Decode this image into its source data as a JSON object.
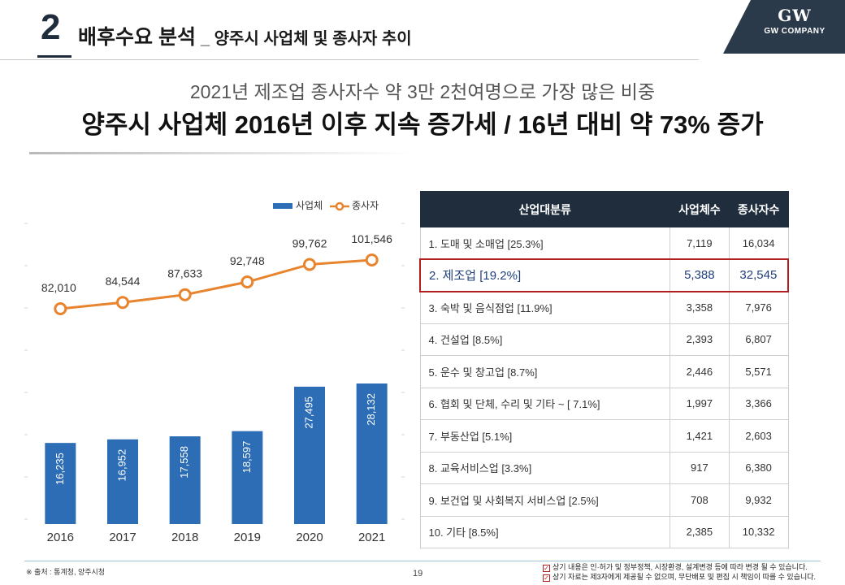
{
  "header": {
    "section_number": "2",
    "title": "배후수요 분석",
    "subtitle": "_ 양주시 사업체 및 종사자 추이",
    "logo_mark": "GW",
    "logo_name": "GW COMPANY"
  },
  "headline": {
    "line1": "2021년 제조업 종사자수 약 3만 2천여명으로 가장 많은 비중",
    "line2": "양주시 사업체 2016년 이후 지속 증가세 / 16년 대비 약 73% 증가"
  },
  "chart_data": {
    "type": "bar",
    "categories": [
      "2016",
      "2017",
      "2018",
      "2019",
      "2020",
      "2021"
    ],
    "series": [
      {
        "name": "사업체",
        "kind": "bar",
        "color": "#2d6db5",
        "values": [
          16235,
          16952,
          17558,
          18597,
          27495,
          28132
        ]
      },
      {
        "name": "종사자",
        "kind": "line",
        "color": "#e8842e",
        "values": [
          82010,
          84544,
          87633,
          92748,
          99762,
          101546
        ]
      }
    ],
    "bar_labels": [
      "16,235",
      "16,952",
      "17,558",
      "18,597",
      "27,495",
      "28,132"
    ],
    "line_labels": [
      "82,010",
      "84,544",
      "87,633",
      "92,748",
      "99,762",
      "101,546"
    ],
    "legend_position": "top-right"
  },
  "table": {
    "headers": [
      "산업대분류",
      "사업체수",
      "종사자수"
    ],
    "rows": [
      [
        "1. 도매 및 소매업 [25.3%]",
        "7,119",
        "16,034"
      ],
      [
        "2. 제조업 [19.2%]",
        "5,388",
        "32,545"
      ],
      [
        "3. 숙박 및 음식점업 [11.9%]",
        "3,358",
        "7,976"
      ],
      [
        "4. 건설업 [8.5%]",
        "2,393",
        "6,807"
      ],
      [
        "5. 운수 및 창고업 [8.7%]",
        "2,446",
        "5,571"
      ],
      [
        "6. 협회 및 단체, 수리 및 기타 ~ [ 7.1%]",
        "1,997",
        "3,366"
      ],
      [
        "7. 부동산업 [5.1%]",
        "1,421",
        "2,603"
      ],
      [
        "8. 교육서비스업 [3.3%]",
        "917",
        "6,380"
      ],
      [
        "9. 보건업 및 사회복지 서비스업 [2.5%]",
        "708",
        "9,932"
      ],
      [
        "10. 기타 [8.5%]",
        "2,385",
        "10,332"
      ]
    ],
    "highlight_row": 1,
    "highlight_color": "#b02020"
  },
  "footer": {
    "source": "※ 출처 : 통계청, 양주시청",
    "page": "19",
    "notes": [
      "상기 내용은 인·허가 및 정부정책, 시장환경, 설계변경 등에 따라 변경 될 수 있습니다.",
      "상기 자료는 제3자에게 제공될 수 없으며, 무단배포 및 편집 시 책임이 따를 수 있습니다."
    ]
  }
}
